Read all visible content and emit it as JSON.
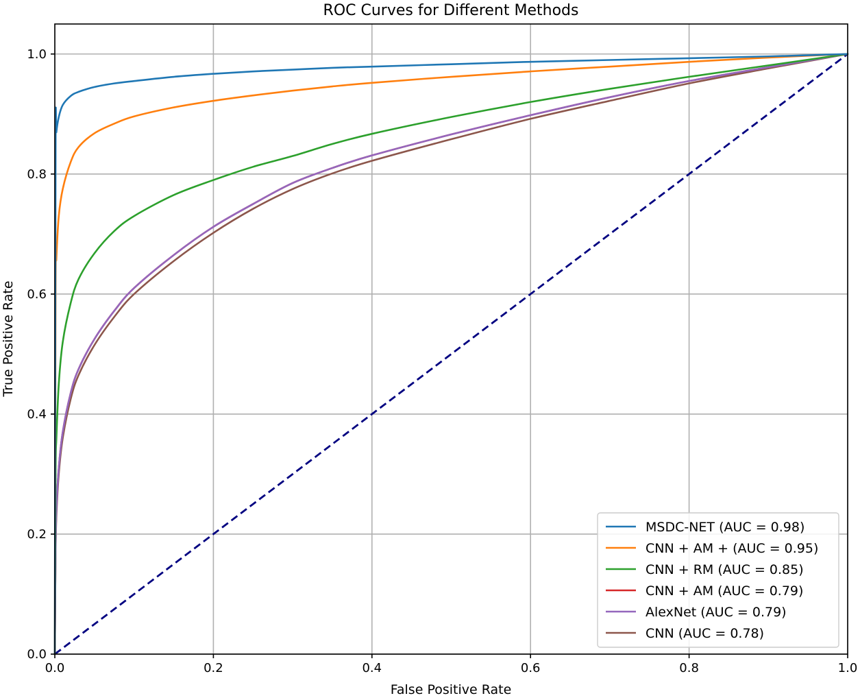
{
  "chart_data": {
    "type": "line",
    "title": "ROC Curves for Different Methods",
    "xlabel": "False Positive Rate",
    "ylabel": "True Positive Rate",
    "xlim": [
      0,
      1
    ],
    "ylim": [
      0,
      1.05
    ],
    "grid": true,
    "legend_position": "bottom-right",
    "xticks": [
      "0.0",
      "0.2",
      "0.4",
      "0.6",
      "0.8",
      "1.0"
    ],
    "yticks": [
      "0.0",
      "0.2",
      "0.4",
      "0.6",
      "0.8",
      "1.0"
    ],
    "x": [
      0,
      0.001,
      0.002,
      0.005,
      0.01,
      0.02,
      0.03,
      0.05,
      0.075,
      0.1,
      0.15,
      0.2,
      0.25,
      0.3,
      0.35,
      0.4,
      0.5,
      0.6,
      0.7,
      0.8,
      0.9,
      1.0
    ],
    "series": [
      {
        "name": "MSDC-NET (AUC = 0.98)",
        "color": "#1f77b4",
        "values": [
          0.0,
          0.84,
          0.87,
          0.895,
          0.915,
          0.93,
          0.937,
          0.945,
          0.951,
          0.955,
          0.962,
          0.967,
          0.971,
          0.974,
          0.977,
          0.979,
          0.983,
          0.987,
          0.99,
          0.993,
          0.996,
          1.0
        ]
      },
      {
        "name": "CNN + AM + (AUC = 0.95)",
        "color": "#ff7f0e",
        "values": [
          0.0,
          0.6,
          0.66,
          0.73,
          0.775,
          0.82,
          0.845,
          0.868,
          0.884,
          0.896,
          0.911,
          0.922,
          0.931,
          0.939,
          0.946,
          0.952,
          0.962,
          0.971,
          0.979,
          0.987,
          0.994,
          1.0
        ]
      },
      {
        "name": "CNN + RM (AUC = 0.85)",
        "color": "#2ca02c",
        "values": [
          0.0,
          0.3,
          0.36,
          0.45,
          0.52,
          0.585,
          0.625,
          0.668,
          0.705,
          0.73,
          0.765,
          0.79,
          0.812,
          0.83,
          0.85,
          0.867,
          0.895,
          0.92,
          0.942,
          0.962,
          0.981,
          1.0
        ]
      },
      {
        "name": "CNN + AM (AUC = 0.79)",
        "color": "#d62728",
        "values": [
          0.0,
          0.18,
          0.24,
          0.31,
          0.37,
          0.435,
          0.475,
          0.525,
          0.572,
          0.61,
          0.665,
          0.712,
          0.75,
          0.785,
          0.81,
          0.831,
          0.866,
          0.898,
          0.928,
          0.955,
          0.978,
          1.0
        ]
      },
      {
        "name": "AlexNet (AUC = 0.79)",
        "color": "#9467bd",
        "values": [
          0.0,
          0.18,
          0.24,
          0.31,
          0.37,
          0.435,
          0.475,
          0.525,
          0.572,
          0.61,
          0.665,
          0.712,
          0.75,
          0.785,
          0.81,
          0.831,
          0.866,
          0.898,
          0.928,
          0.955,
          0.978,
          1.0
        ]
      },
      {
        "name": "CNN (AUC = 0.78)",
        "color": "#8c564b",
        "values": [
          0.0,
          0.17,
          0.23,
          0.3,
          0.36,
          0.425,
          0.465,
          0.515,
          0.562,
          0.6,
          0.655,
          0.702,
          0.742,
          0.775,
          0.801,
          0.822,
          0.858,
          0.892,
          0.922,
          0.951,
          0.976,
          1.0
        ]
      }
    ],
    "reference_line": {
      "name": "random",
      "color": "#000080",
      "style": "dashed",
      "x": [
        0,
        1
      ],
      "y": [
        0,
        1
      ]
    }
  }
}
